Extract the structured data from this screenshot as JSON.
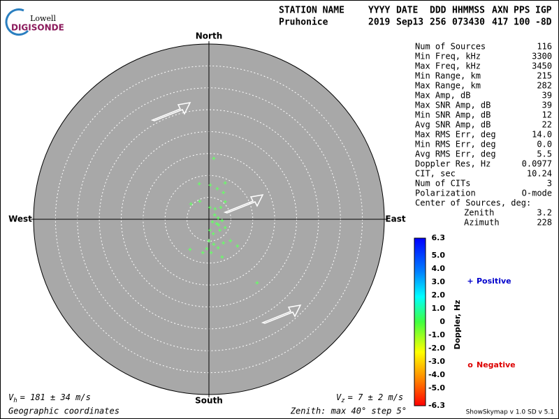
{
  "logo": {
    "top": "Lowell",
    "bottom": "DIGISONDE"
  },
  "header": {
    "columns": [
      [
        "STATION NAME",
        "Pruhonice"
      ],
      [
        "YYYY",
        "2019"
      ],
      [
        "DATE",
        "Sep13"
      ],
      [
        "DDD",
        "256"
      ],
      [
        "HHMMSS",
        "073430"
      ],
      [
        "AXN",
        "417"
      ],
      [
        "PPS",
        "100"
      ],
      [
        "IGP",
        "-8D"
      ]
    ]
  },
  "stats": [
    [
      "Num of Sources",
      "116"
    ],
    [
      "Min Freq, kHz",
      "3300"
    ],
    [
      "Max Freq, kHz",
      "3450"
    ],
    [
      "Min Range, km",
      "215"
    ],
    [
      "Max Range, km",
      "282"
    ],
    [
      "Max Amp, dB",
      "39"
    ],
    [
      "Max SNR Amp, dB",
      "39"
    ],
    [
      "Min SNR Amp, dB",
      "12"
    ],
    [
      "Avg SNR Amp, dB",
      "22"
    ],
    [
      "Max RMS Err, deg",
      "14.0"
    ],
    [
      "Min RMS Err, deg",
      "0.0"
    ],
    [
      "Avg RMS Err, deg",
      "5.5"
    ],
    [
      "Doppler Res, Hz",
      "0.0977"
    ],
    [
      "CIT, sec",
      "10.24"
    ],
    [
      "Num of CITs",
      "3"
    ],
    [
      "Polarization",
      "O-mode"
    ]
  ],
  "center": {
    "title": "Center of Sources, deg:",
    "rows": [
      [
        "Zenith",
        "3.2"
      ],
      [
        "Azimuth",
        "228"
      ]
    ]
  },
  "footer": {
    "vh": {
      "symbol": "V",
      "sub": "h",
      "text": "= 181 ± 34 m/s"
    },
    "vz": {
      "symbol": "V",
      "sub": "z",
      "text": "= 7 ± 2 m/s"
    },
    "coords": "Geographic coordinates",
    "zenith": "Zenith: max 40°  step 5°",
    "version": "ShowSkymap v 1.0   SD v 5.1"
  },
  "chart_data": {
    "type": "skymap",
    "directions": {
      "north": "North",
      "south": "South",
      "east": "East",
      "west": "West"
    },
    "rlim": [
      0,
      40
    ],
    "rticks": [
      5,
      10,
      15,
      20,
      25,
      30,
      35,
      40
    ],
    "xlim": [
      -40,
      40
    ],
    "ylim": [
      -40,
      40
    ],
    "color": "#66ff66",
    "x": [
      1.1,
      -2.2,
      0.3,
      3.7,
      1.9,
      3.3,
      -4.1,
      -2.1,
      0.2,
      1.4,
      2.7,
      3.7,
      1.3,
      2.1,
      3.0,
      1.8,
      0.2,
      1.0,
      2.5,
      3.7,
      0.0,
      1.1,
      -0.5,
      0.5,
      -1.4,
      2.1,
      3.3,
      6.5,
      -4.3,
      3.0,
      11.0,
      4.9,
      2.2,
      0.8
    ],
    "y": [
      13.9,
      8.1,
      7.8,
      8.3,
      7.0,
      6.1,
      3.5,
      4.1,
      2.7,
      2.4,
      2.7,
      4.0,
      1.0,
      0.3,
      -0.3,
      -1.0,
      -2.5,
      -3.3,
      -2.5,
      -1.9,
      -4.9,
      -5.7,
      -6.7,
      -7.6,
      -7.6,
      -6.5,
      -5.4,
      -6.1,
      -6.9,
      -8.6,
      -14.5,
      -4.9,
      -1.3,
      -0.6
    ],
    "colorbar": {
      "label": "Doppler, Hz",
      "lim": [
        -6.3,
        6.3
      ],
      "ticks": [
        6.3,
        {
          "value": 5,
          "label": "5.0"
        },
        {
          "value": 4,
          "label": "4.0"
        },
        {
          "value": 3,
          "label": "3.0"
        },
        {
          "value": 2,
          "label": "2.0"
        },
        {
          "value": 1,
          "label": "1.0"
        },
        0,
        {
          "value": -1,
          "label": "-1.0"
        },
        {
          "value": -2,
          "label": "-2.0"
        },
        {
          "value": -3,
          "label": "-3.0"
        },
        {
          "value": -4,
          "label": "-4.0"
        },
        {
          "value": -5,
          "label": "-5.0"
        },
        -6.3
      ],
      "positive": {
        "symbol": "+",
        "label": "Positive",
        "color": "#0000cc"
      },
      "negative": {
        "symbol": "o",
        "label": "Negative",
        "color": "#dd0000"
      }
    }
  }
}
